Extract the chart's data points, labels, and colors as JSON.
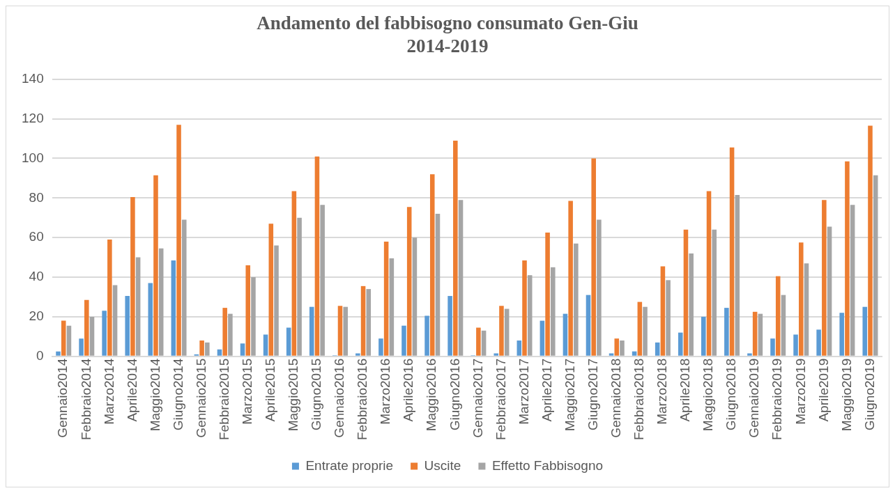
{
  "chart_data": {
    "type": "bar",
    "title": [
      "Andamento del fabbisogno consumato Gen-Giu",
      "2014-2019"
    ],
    "categories": [
      "Gennaio2014",
      "Febbraio2014",
      "Marzo2014",
      "Aprile2014",
      "Maggio2014",
      "Giugno2014",
      "Gennaio2015",
      "Febbraio2015",
      "Marzo2015",
      "Aprile2015",
      "Maggio2015",
      "Giugno2015",
      "Gennaio2016",
      "Febbraio2016",
      "Marzo2016",
      "Aprile2016",
      "Maggio2016",
      "Giugno2016",
      "Gennaio2017",
      "Febbraio2017",
      "Marzo2017",
      "Aprile2017",
      "Maggio2017",
      "Giugno2017",
      "Gennaio2018",
      "Febbraio2018",
      "Marzo2018",
      "Aprile2018",
      "Maggio2018",
      "Giugno2018",
      "Gennaio2019",
      "Febbraio2019",
      "Marzo2019",
      "Aprile2019",
      "Maggio2019",
      "Giugno2019"
    ],
    "series": [
      {
        "name": "Entrate proprie",
        "color": "#5b9bd5",
        "values": [
          2.5,
          9,
          23,
          30.5,
          37,
          48.5,
          1,
          3.5,
          6.5,
          11,
          14.5,
          25,
          0.5,
          1.5,
          9,
          15.5,
          20.5,
          30.5,
          0.5,
          1.5,
          8,
          18,
          21.5,
          31,
          1.5,
          2.5,
          7,
          12,
          20,
          24.5,
          1.5,
          9,
          11,
          13.5,
          22,
          25
        ]
      },
      {
        "name": "Uscite",
        "color": "#ed7d31",
        "values": [
          18,
          28.5,
          59,
          80.5,
          91.5,
          117,
          8,
          24.5,
          46,
          67,
          83.5,
          101,
          25.5,
          35.5,
          58,
          75.5,
          92,
          109,
          14.5,
          25.5,
          48.5,
          62.5,
          78.5,
          100,
          9,
          27.5,
          45.5,
          64,
          83.5,
          105.5,
          22.5,
          40.5,
          57.5,
          79,
          98.5,
          116.5
        ]
      },
      {
        "name": "Effetto Fabbisogno",
        "color": "#a5a5a5",
        "values": [
          15.5,
          20,
          36,
          50,
          54.5,
          69,
          7,
          21.5,
          40,
          56,
          70,
          76.5,
          25,
          34,
          49.5,
          60,
          72,
          79,
          13,
          24,
          41,
          45,
          57,
          69,
          8,
          25,
          38.5,
          52,
          64,
          81.5,
          21.5,
          31,
          47,
          65.5,
          76.5,
          91.5
        ]
      }
    ],
    "ylim": [
      0,
      140
    ],
    "yticks": [
      0,
      20,
      40,
      60,
      80,
      100,
      120,
      140
    ],
    "grid": "y",
    "legend": "bottom"
  }
}
